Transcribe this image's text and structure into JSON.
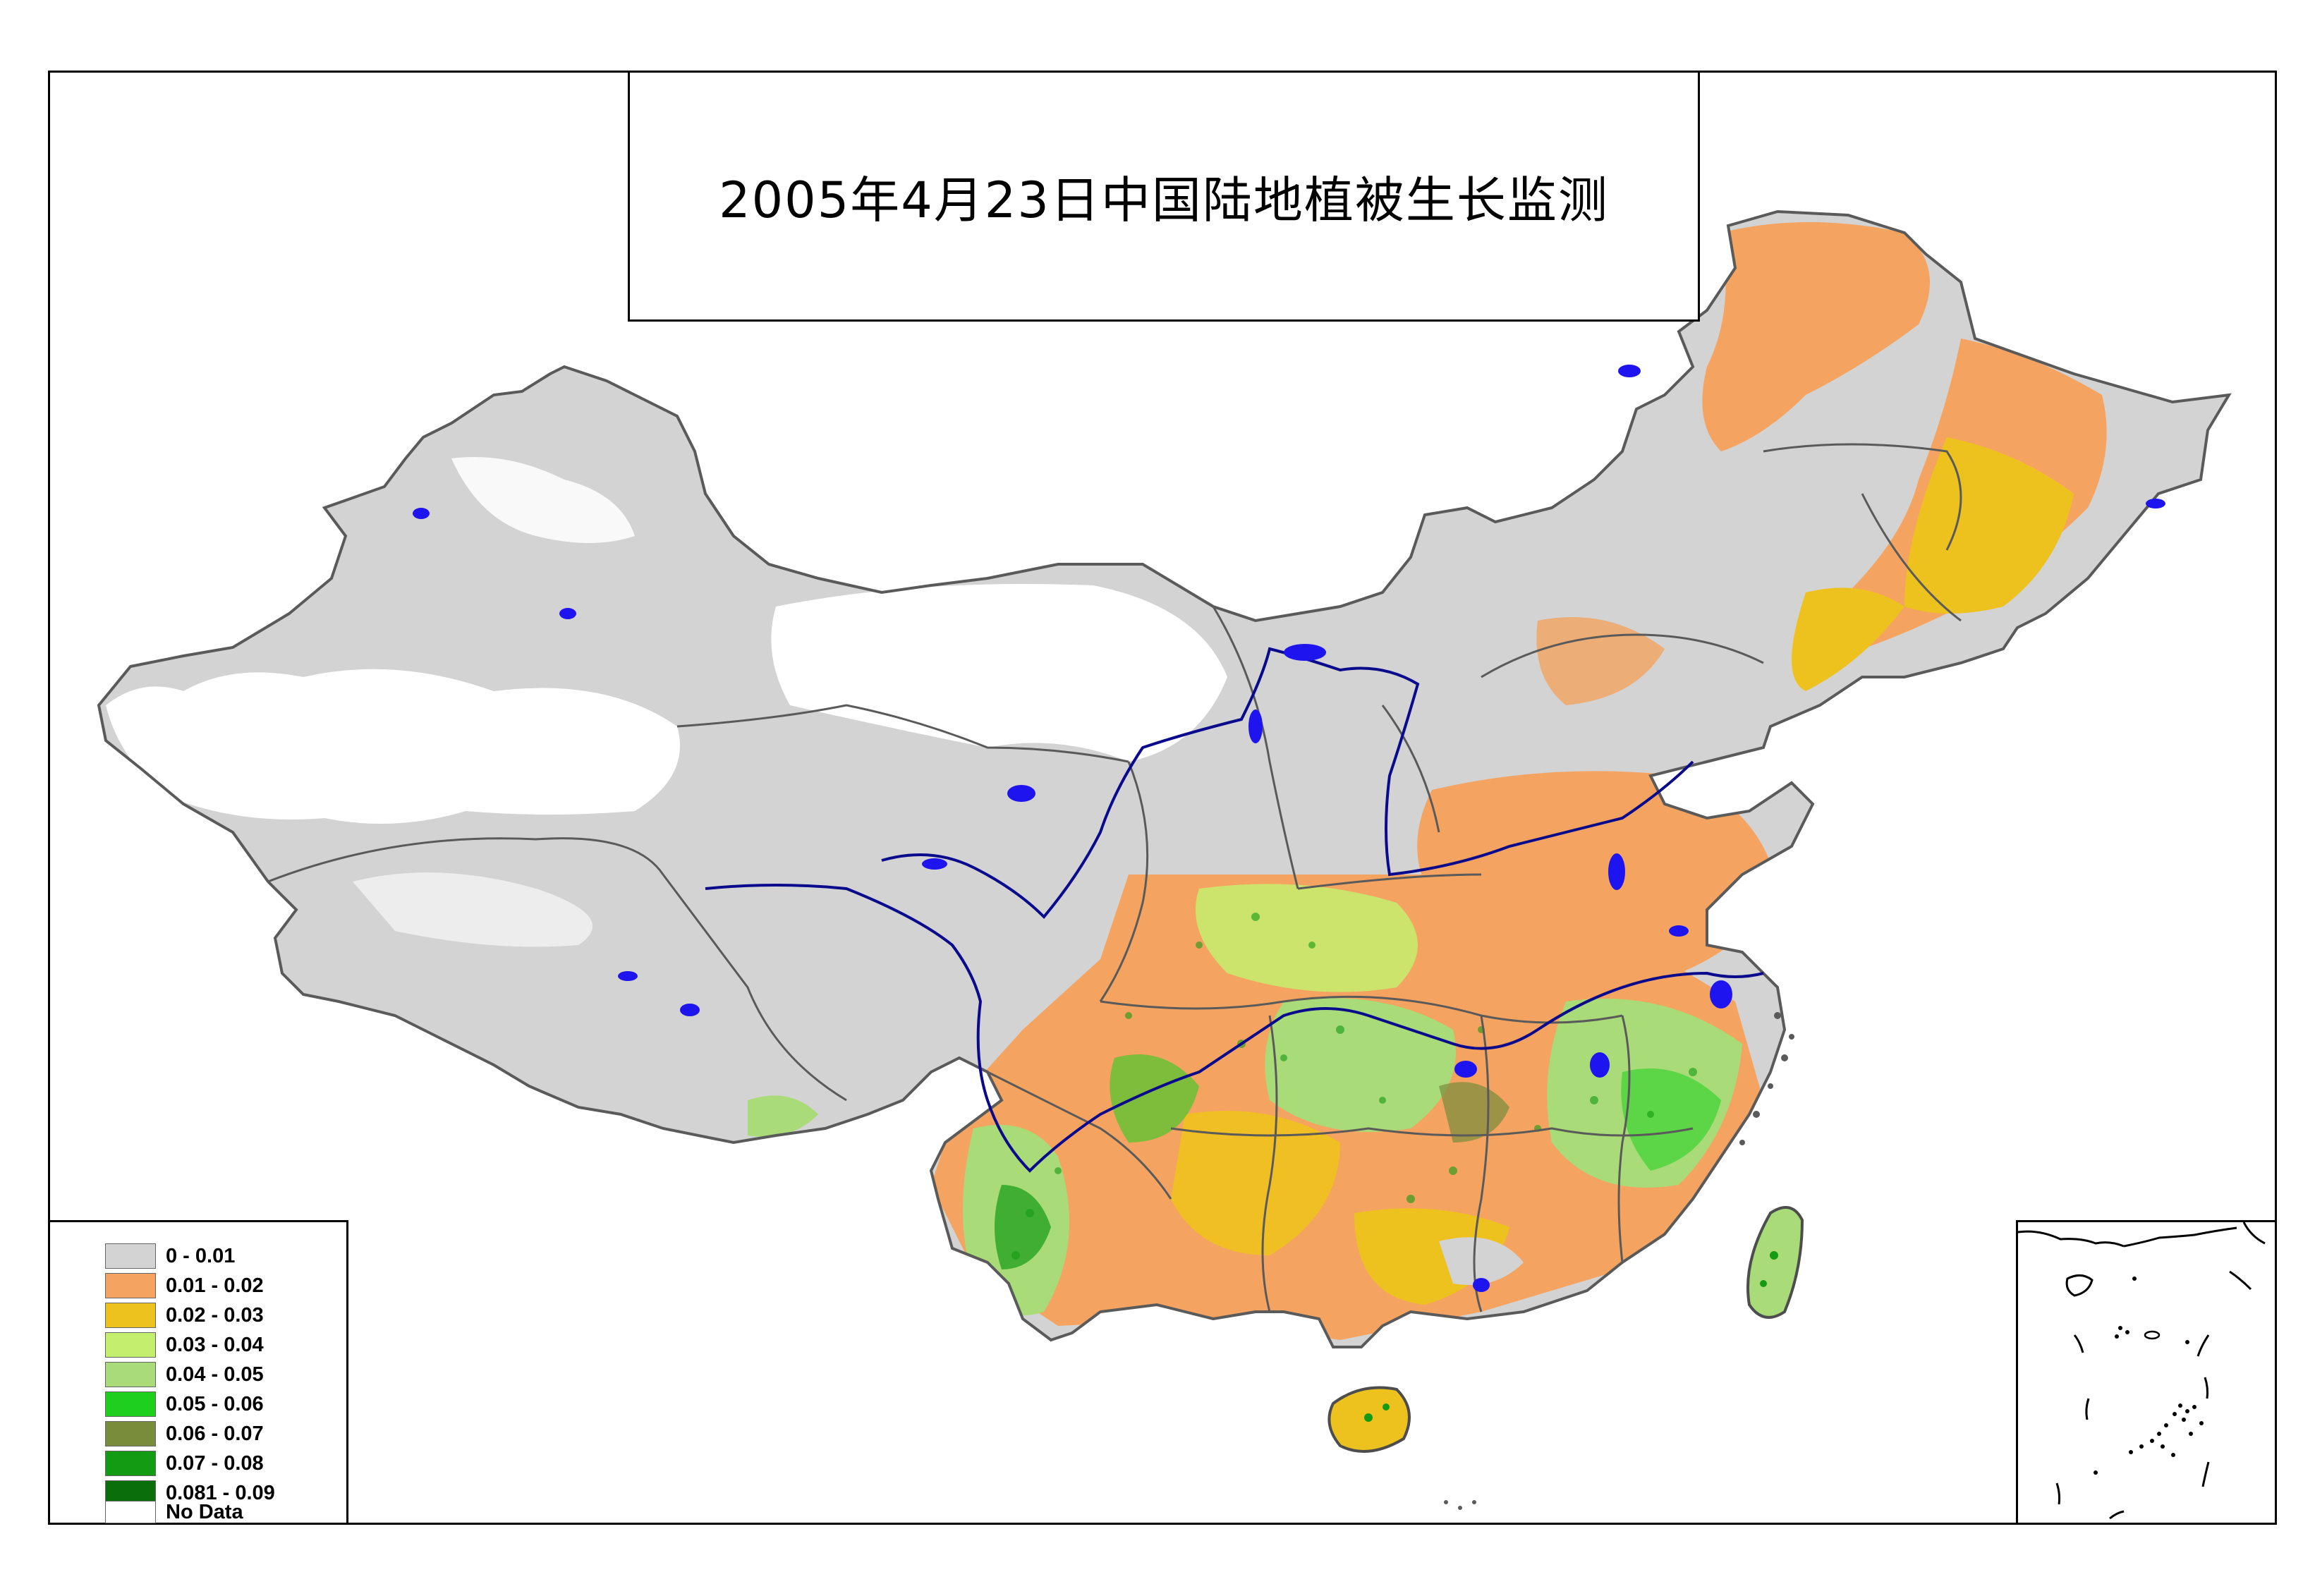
{
  "title": "2005年4月23日中国陆地植被生长监测",
  "legend": {
    "items": [
      {
        "label": "0 - 0.01",
        "color": "#d3d3d3"
      },
      {
        "label": "0.01 - 0.02",
        "color": "#f4a460"
      },
      {
        "label": "0.02 - 0.03",
        "color": "#eec21e"
      },
      {
        "label": "0.03 - 0.04",
        "color": "#c4ef6e"
      },
      {
        "label": "0.04 - 0.05",
        "color": "#a9db78"
      },
      {
        "label": "0.05 - 0.06",
        "color": "#1ecf1e"
      },
      {
        "label": "0.06 - 0.07",
        "color": "#788c3c"
      },
      {
        "label": "0.07 - 0.08",
        "color": "#149b14"
      },
      {
        "label": "0.081 - 0.09",
        "color": "#0a6e0a"
      },
      {
        "label": "No Data",
        "color": "#ffffff"
      }
    ]
  },
  "colors": {
    "water": "#1e14f0",
    "river": "#0a0a8c",
    "border": "#5a5a5a",
    "coast": "#4d4d4d"
  }
}
